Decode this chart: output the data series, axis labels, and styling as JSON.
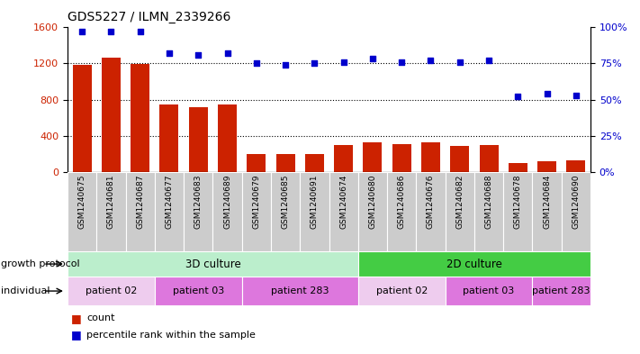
{
  "title": "GDS5227 / ILMN_2339266",
  "samples": [
    "GSM1240675",
    "GSM1240681",
    "GSM1240687",
    "GSM1240677",
    "GSM1240683",
    "GSM1240689",
    "GSM1240679",
    "GSM1240685",
    "GSM1240691",
    "GSM1240674",
    "GSM1240680",
    "GSM1240686",
    "GSM1240676",
    "GSM1240682",
    "GSM1240688",
    "GSM1240678",
    "GSM1240684",
    "GSM1240690"
  ],
  "counts": [
    1185,
    1260,
    1195,
    745,
    720,
    745,
    195,
    195,
    195,
    300,
    325,
    310,
    330,
    290,
    295,
    100,
    115,
    130
  ],
  "percentile": [
    97,
    97,
    97,
    82,
    81,
    82,
    75,
    74,
    75,
    76,
    78,
    76,
    77,
    76,
    77,
    52,
    54,
    53
  ],
  "left_ylim": [
    0,
    1600
  ],
  "right_ylim": [
    0,
    100
  ],
  "left_yticks": [
    0,
    400,
    800,
    1200,
    1600
  ],
  "right_yticks": [
    0,
    25,
    50,
    75,
    100
  ],
  "bar_color": "#cc2200",
  "dot_color": "#0000cc",
  "growth_protocol_items": [
    {
      "label": "3D culture",
      "start": 0,
      "end": 10,
      "color": "#bbeecc"
    },
    {
      "label": "2D culture",
      "start": 10,
      "end": 18,
      "color": "#44cc44"
    }
  ],
  "individuals": [
    {
      "label": "patient 02",
      "start": 0,
      "end": 3,
      "color": "#eeccee"
    },
    {
      "label": "patient 03",
      "start": 3,
      "end": 6,
      "color": "#dd77dd"
    },
    {
      "label": "patient 283",
      "start": 6,
      "end": 10,
      "color": "#dd77dd"
    },
    {
      "label": "patient 02",
      "start": 10,
      "end": 13,
      "color": "#eeccee"
    },
    {
      "label": "patient 03",
      "start": 13,
      "end": 16,
      "color": "#dd77dd"
    },
    {
      "label": "patient 283",
      "start": 16,
      "end": 18,
      "color": "#dd77dd"
    }
  ],
  "sample_bg_color": "#cccccc",
  "label_text_color": "#333333",
  "row_label_color": "#333333",
  "grid_color": "#000000",
  "grid_linestyle": "dotted",
  "grid_linewidth": 0.8
}
